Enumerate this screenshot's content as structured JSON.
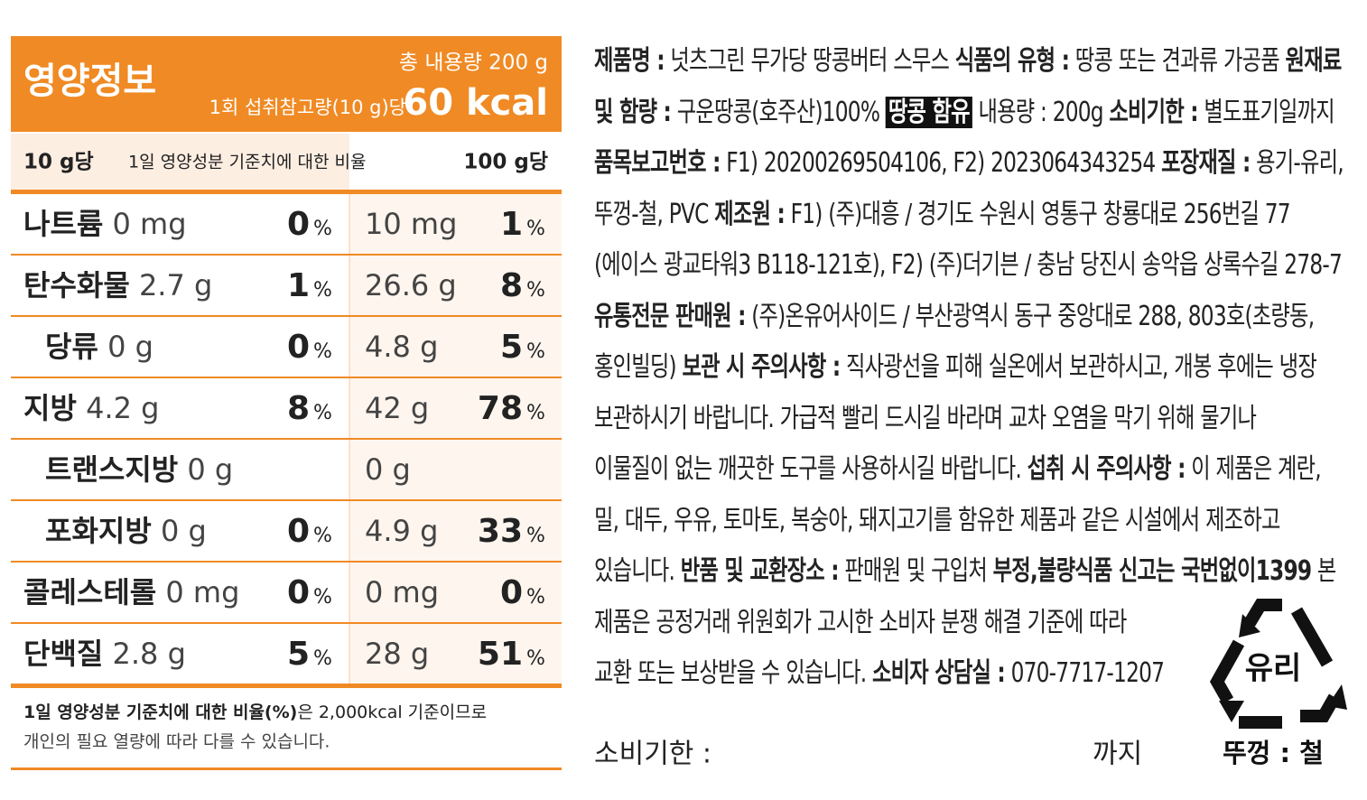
{
  "nutrition": {
    "title": "영양정보",
    "total": "총 내용량 200 g",
    "serving": "1회 섭취참고량(10 g)당",
    "kcal": "60 kcal",
    "header": {
      "per_serving": "10 g당",
      "ratio": "1일 영양성분 기준치에 대한 비율",
      "per_100g": "100 g당"
    },
    "percent_sign": "%",
    "rows": [
      {
        "name": "나트륨",
        "amount": "0 mg",
        "percent": "0",
        "amount_100g": "10 mg",
        "percent_100g": "1"
      },
      {
        "name": "탄수화물",
        "amount": "2.7 g",
        "percent": "1",
        "amount_100g": "26.6 g",
        "percent_100g": "8",
        "children": [
          {
            "name": "당류",
            "amount": "0 g",
            "percent": "0",
            "amount_100g": "4.8 g",
            "percent_100g": "5"
          }
        ]
      },
      {
        "name": "지방",
        "amount": "4.2 g",
        "percent": "8",
        "amount_100g": "42 g",
        "percent_100g": "78",
        "children": [
          {
            "name": "트랜스지방",
            "amount": "0 g",
            "amount_100g": "0 g"
          },
          {
            "name": "포화지방",
            "amount": "0 g",
            "percent": "0",
            "amount_100g": "4.9 g",
            "percent_100g": "33"
          }
        ]
      },
      {
        "name": "콜레스테롤",
        "amount": "0 mg",
        "percent": "0",
        "amount_100g": "0 mg",
        "percent_100g": "0"
      },
      {
        "name": "단백질",
        "amount": "2.8 g",
        "percent": "5",
        "amount_100g": "28 g",
        "percent_100g": "51"
      }
    ],
    "footnote": {
      "bold": "1일 영양성분 기준치에 대한 비율(%)",
      "rest": "은 2,000kcal 기준이므로",
      "line2": "개인의 필요 열량에 따라 다를 수 있습니다."
    }
  },
  "label": {
    "lines": [
      [
        {
          "text": "제품명 :",
          "style": "bold"
        },
        {
          "text": " 넛츠그린 무가당 땅콩버터 스무스 ",
          "style": "normal"
        },
        {
          "text": "식품의 유형 :",
          "style": "bold"
        },
        {
          "text": " 땅콩 또는 견과류 가공품 ",
          "style": "normal"
        },
        {
          "text": "원재료",
          "style": "bold"
        }
      ],
      [
        {
          "text": "및 함량 :",
          "style": "bold"
        },
        {
          "text": " 구운땅콩(호주산)100% ",
          "style": "normal"
        },
        {
          "text": "땅콩 함유",
          "style": "highlight"
        },
        {
          "text": " 내용량 : 200g ",
          "style": "normal"
        },
        {
          "text": "소비기한 :",
          "style": "bold"
        },
        {
          "text": " 별도표기일까지",
          "style": "normal"
        }
      ],
      [
        {
          "text": "품목보고번호 :",
          "style": "bold"
        },
        {
          "text": " F1) 20200269504106, F2) 2023064343254 ",
          "style": "normal"
        },
        {
          "text": "포장재질 :",
          "style": "bold"
        },
        {
          "text": " 용기-유리,",
          "style": "normal"
        }
      ],
      [
        {
          "text": "뚜껑-철, PVC ",
          "style": "normal"
        },
        {
          "text": "제조원 :",
          "style": "bold"
        },
        {
          "text": " F1) (주)대흥 / 경기도 수원시 영통구 창룡대로 256번길 77",
          "style": "normal"
        }
      ],
      [
        {
          "text": "(에이스 광교타워3 B118-121호), F2) (주)더기븐 / 충남 당진시 송악읍 상록수길 278-7",
          "style": "normal"
        }
      ],
      [
        {
          "text": "유통전문 판매원 :",
          "style": "bold"
        },
        {
          "text": " (주)온유어사이드 / 부산광역시 동구 중앙대로 288, 803호(초량동,",
          "style": "normal"
        }
      ],
      [
        {
          "text": "홍인빌딩) ",
          "style": "normal"
        },
        {
          "text": "보관 시 주의사항 :",
          "style": "bold"
        },
        {
          "text": " 직사광선을 피해 실온에서 보관하시고, 개봉 후에는 냉장",
          "style": "normal"
        }
      ],
      [
        {
          "text": "보관하시기 바랍니다. 가급적 빨리 드시길 바라며 교차 오염을 막기 위해 물기나",
          "style": "normal"
        }
      ],
      [
        {
          "text": "이물질이 없는 깨끗한 도구를 사용하시길 바랍니다. ",
          "style": "normal"
        },
        {
          "text": "섭취 시 주의사항 :",
          "style": "bold"
        },
        {
          "text": " 이 제품은 계란,",
          "style": "normal"
        }
      ],
      [
        {
          "text": "밀, 대두, 우유, 토마토, 복숭아, 돼지고기를 함유한 제품과 같은 시설에서 제조하고",
          "style": "normal"
        }
      ],
      [
        {
          "text": "있습니다. ",
          "style": "normal"
        },
        {
          "text": "반품 및 교환장소 :",
          "style": "bold"
        },
        {
          "text": " 판매원 및 구입처 ",
          "style": "normal"
        },
        {
          "text": "부정,불량식품 신고는 국번없이1399",
          "style": "bold"
        },
        {
          "text": " 본",
          "style": "normal"
        }
      ],
      [
        {
          "text": "제품은 공정거래 위원회가 고시한 소비자 분쟁 해결 기준에 따라",
          "style": "normal"
        }
      ],
      [
        {
          "text": "교환 또는 보상받을 수 있습니다. ",
          "style": "normal"
        },
        {
          "text": "소비자 상담실 :",
          "style": "bold"
        },
        {
          "text": " 070-7717-1207",
          "style": "normal"
        }
      ]
    ]
  },
  "bottom": {
    "expiry": "소비기한 :",
    "until": "까지",
    "recycle": "유리",
    "lid": "뚜껑 : 철"
  }
}
